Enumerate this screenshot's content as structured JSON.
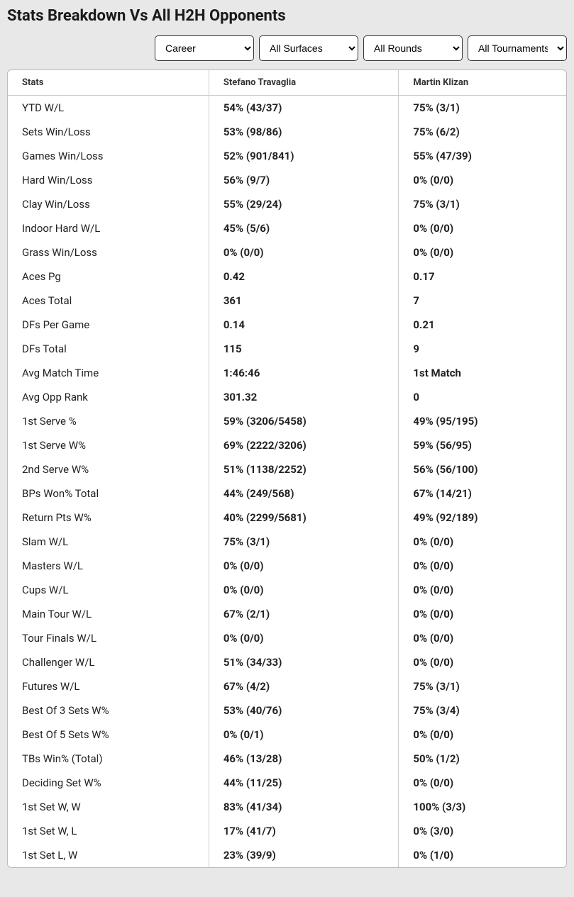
{
  "title": "Stats Breakdown Vs All H2H Opponents",
  "filters": {
    "career": "Career",
    "surfaces": "All Surfaces",
    "rounds": "All Rounds",
    "tournaments": "All Tournaments"
  },
  "table": {
    "headers": {
      "stats": "Stats",
      "player1": "Stefano Travaglia",
      "player2": "Martin Klizan"
    },
    "rows": [
      {
        "stat": "YTD W/L",
        "p1": "54% (43/37)",
        "p2": "75% (3/1)"
      },
      {
        "stat": "Sets Win/Loss",
        "p1": "53% (98/86)",
        "p2": "75% (6/2)"
      },
      {
        "stat": "Games Win/Loss",
        "p1": "52% (901/841)",
        "p2": "55% (47/39)"
      },
      {
        "stat": "Hard Win/Loss",
        "p1": "56% (9/7)",
        "p2": "0% (0/0)"
      },
      {
        "stat": "Clay Win/Loss",
        "p1": "55% (29/24)",
        "p2": "75% (3/1)"
      },
      {
        "stat": "Indoor Hard W/L",
        "p1": "45% (5/6)",
        "p2": "0% (0/0)"
      },
      {
        "stat": "Grass Win/Loss",
        "p1": "0% (0/0)",
        "p2": "0% (0/0)"
      },
      {
        "stat": "Aces Pg",
        "p1": "0.42",
        "p2": "0.17"
      },
      {
        "stat": "Aces Total",
        "p1": "361",
        "p2": "7"
      },
      {
        "stat": "DFs Per Game",
        "p1": "0.14",
        "p2": "0.21"
      },
      {
        "stat": "DFs Total",
        "p1": "115",
        "p2": "9"
      },
      {
        "stat": "Avg Match Time",
        "p1": "1:46:46",
        "p2": "1st Match"
      },
      {
        "stat": "Avg Opp Rank",
        "p1": "301.32",
        "p2": "0"
      },
      {
        "stat": "1st Serve %",
        "p1": "59% (3206/5458)",
        "p2": "49% (95/195)"
      },
      {
        "stat": "1st Serve W%",
        "p1": "69% (2222/3206)",
        "p2": "59% (56/95)"
      },
      {
        "stat": "2nd Serve W%",
        "p1": "51% (1138/2252)",
        "p2": "56% (56/100)"
      },
      {
        "stat": "BPs Won% Total",
        "p1": "44% (249/568)",
        "p2": "67% (14/21)"
      },
      {
        "stat": "Return Pts W%",
        "p1": "40% (2299/5681)",
        "p2": "49% (92/189)"
      },
      {
        "stat": "Slam W/L",
        "p1": "75% (3/1)",
        "p2": "0% (0/0)"
      },
      {
        "stat": "Masters W/L",
        "p1": "0% (0/0)",
        "p2": "0% (0/0)"
      },
      {
        "stat": "Cups W/L",
        "p1": "0% (0/0)",
        "p2": "0% (0/0)"
      },
      {
        "stat": "Main Tour W/L",
        "p1": "67% (2/1)",
        "p2": "0% (0/0)"
      },
      {
        "stat": "Tour Finals W/L",
        "p1": "0% (0/0)",
        "p2": "0% (0/0)"
      },
      {
        "stat": "Challenger W/L",
        "p1": "51% (34/33)",
        "p2": "0% (0/0)"
      },
      {
        "stat": "Futures W/L",
        "p1": "67% (4/2)",
        "p2": "75% (3/1)"
      },
      {
        "stat": "Best Of 3 Sets W%",
        "p1": "53% (40/76)",
        "p2": "75% (3/4)"
      },
      {
        "stat": "Best Of 5 Sets W%",
        "p1": "0% (0/1)",
        "p2": "0% (0/0)"
      },
      {
        "stat": "TBs Win% (Total)",
        "p1": "46% (13/28)",
        "p2": "50% (1/2)"
      },
      {
        "stat": "Deciding Set W%",
        "p1": "44% (11/25)",
        "p2": "0% (0/0)"
      },
      {
        "stat": "1st Set W, W",
        "p1": "83% (41/34)",
        "p2": "100% (3/3)"
      },
      {
        "stat": "1st Set W, L",
        "p1": "17% (41/7)",
        "p2": "0% (3/0)"
      },
      {
        "stat": "1st Set L, W",
        "p1": "23% (39/9)",
        "p2": "0% (1/0)"
      }
    ]
  }
}
